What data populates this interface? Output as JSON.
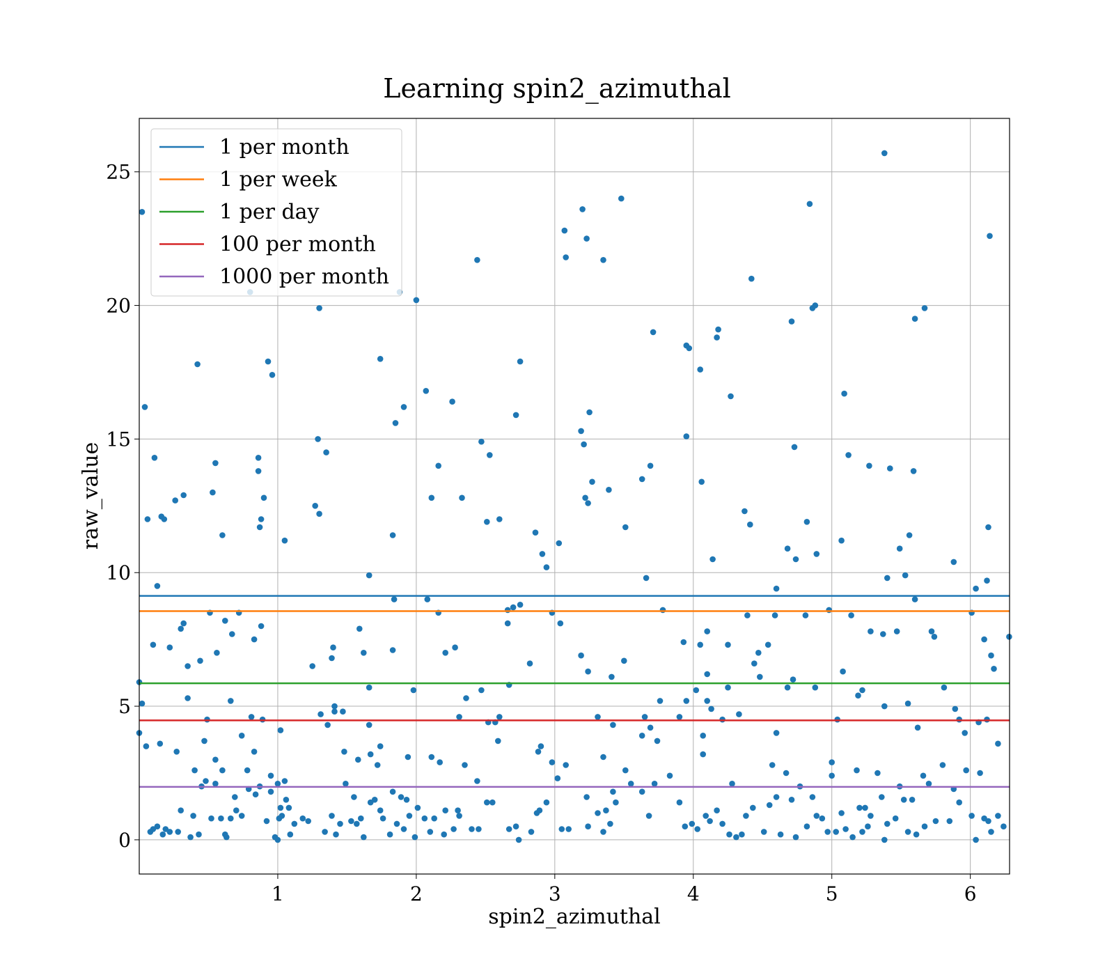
{
  "chart_data": {
    "type": "scatter",
    "title": "Learning spin2_azimuthal",
    "xlabel": "spin2_azimuthal",
    "ylabel": "raw_value",
    "xlim": [
      0.0,
      6.2832
    ],
    "ylim": [
      -1.28,
      27.0
    ],
    "xticks": [
      1,
      2,
      3,
      4,
      5,
      6
    ],
    "yticks": [
      0,
      5,
      10,
      15,
      20,
      25
    ],
    "grid": true,
    "legend_position": "top-left",
    "point_color": "#1f77b4",
    "hlines": [
      {
        "name": "1 per month",
        "y": 9.13,
        "color": "#1f77b4"
      },
      {
        "name": "1 per week",
        "y": 8.56,
        "color": "#ff7f0e"
      },
      {
        "name": "1 per day",
        "y": 5.86,
        "color": "#2ca02c"
      },
      {
        "name": "100 per month",
        "y": 4.47,
        "color": "#d62728"
      },
      {
        "name": "1000 per month",
        "y": 1.98,
        "color": "#9467bd"
      }
    ],
    "points": [
      [
        0.02,
        23.5
      ],
      [
        0.04,
        16.2
      ],
      [
        0.06,
        12.0
      ],
      [
        0.11,
        14.3
      ],
      [
        0.13,
        9.5
      ],
      [
        0.16,
        12.1
      ],
      [
        0.18,
        12.0
      ],
      [
        0.42,
        17.8
      ],
      [
        0.53,
        13.0
      ],
      [
        0.55,
        14.1
      ],
      [
        0.32,
        12.9
      ],
      [
        0.26,
        12.7
      ],
      [
        0.6,
        11.4
      ],
      [
        0.86,
        14.3
      ],
      [
        0.86,
        13.8
      ],
      [
        0.88,
        12.0
      ],
      [
        0.87,
        11.7
      ],
      [
        0.9,
        12.8
      ],
      [
        0.93,
        17.9
      ],
      [
        0.96,
        17.4
      ],
      [
        1.05,
        11.2
      ],
      [
        0.8,
        20.5
      ],
      [
        1.27,
        12.5
      ],
      [
        1.3,
        12.2
      ],
      [
        1.29,
        15.0
      ],
      [
        1.3,
        19.9
      ],
      [
        1.35,
        14.5
      ],
      [
        1.66,
        9.9
      ],
      [
        1.74,
        18.0
      ],
      [
        1.83,
        11.4
      ],
      [
        1.85,
        15.6
      ],
      [
        1.88,
        20.5
      ],
      [
        1.91,
        16.2
      ],
      [
        2.0,
        20.2
      ],
      [
        2.07,
        16.8
      ],
      [
        2.11,
        12.8
      ],
      [
        2.16,
        14.0
      ],
      [
        2.26,
        16.4
      ],
      [
        2.33,
        12.8
      ],
      [
        2.44,
        21.7
      ],
      [
        2.47,
        14.9
      ],
      [
        2.51,
        11.9
      ],
      [
        2.53,
        14.4
      ],
      [
        2.6,
        12.0
      ],
      [
        2.72,
        15.9
      ],
      [
        2.75,
        17.9
      ],
      [
        2.86,
        11.5
      ],
      [
        2.91,
        10.7
      ],
      [
        2.94,
        10.2
      ],
      [
        3.03,
        11.1
      ],
      [
        3.07,
        22.8
      ],
      [
        3.08,
        21.8
      ],
      [
        3.19,
        15.3
      ],
      [
        3.2,
        23.6
      ],
      [
        3.21,
        14.8
      ],
      [
        3.23,
        22.5
      ],
      [
        3.22,
        12.8
      ],
      [
        3.24,
        12.6
      ],
      [
        3.25,
        16.0
      ],
      [
        3.27,
        13.4
      ],
      [
        3.35,
        21.7
      ],
      [
        3.39,
        13.1
      ],
      [
        3.48,
        24.0
      ],
      [
        3.51,
        11.7
      ],
      [
        3.63,
        13.5
      ],
      [
        3.66,
        9.8
      ],
      [
        3.69,
        14.0
      ],
      [
        3.71,
        19.0
      ],
      [
        3.95,
        18.5
      ],
      [
        3.97,
        18.4
      ],
      [
        3.95,
        15.1
      ],
      [
        4.05,
        17.6
      ],
      [
        4.06,
        13.4
      ],
      [
        4.14,
        10.5
      ],
      [
        4.17,
        18.8
      ],
      [
        4.18,
        19.1
      ],
      [
        4.27,
        16.6
      ],
      [
        4.37,
        12.3
      ],
      [
        4.41,
        11.8
      ],
      [
        4.42,
        21.0
      ],
      [
        4.6,
        9.4
      ],
      [
        4.68,
        10.9
      ],
      [
        4.71,
        19.4
      ],
      [
        4.73,
        14.7
      ],
      [
        4.74,
        10.5
      ],
      [
        4.82,
        11.9
      ],
      [
        4.84,
        23.8
      ],
      [
        4.86,
        19.9
      ],
      [
        4.88,
        20.0
      ],
      [
        4.89,
        10.7
      ],
      [
        5.07,
        11.2
      ],
      [
        5.09,
        16.7
      ],
      [
        5.12,
        14.4
      ],
      [
        5.27,
        14.0
      ],
      [
        5.38,
        25.7
      ],
      [
        5.4,
        9.8
      ],
      [
        5.42,
        13.9
      ],
      [
        5.49,
        10.9
      ],
      [
        5.53,
        9.9
      ],
      [
        5.56,
        11.4
      ],
      [
        5.59,
        13.8
      ],
      [
        5.6,
        19.5
      ],
      [
        5.67,
        19.9
      ],
      [
        5.88,
        10.4
      ],
      [
        6.04,
        9.4
      ],
      [
        6.12,
        9.7
      ],
      [
        6.13,
        11.7
      ],
      [
        6.14,
        22.6
      ],
      [
        0.0,
        5.9
      ],
      [
        0.02,
        5.1
      ],
      [
        0.05,
        3.5
      ],
      [
        0.1,
        7.3
      ],
      [
        0.15,
        3.6
      ],
      [
        0.22,
        7.2
      ],
      [
        0.27,
        3.3
      ],
      [
        0.3,
        7.9
      ],
      [
        0.32,
        8.1
      ],
      [
        0.35,
        6.5
      ],
      [
        0.35,
        5.3
      ],
      [
        0.4,
        2.6
      ],
      [
        0.44,
        6.7
      ],
      [
        0.47,
        3.7
      ],
      [
        0.49,
        4.5
      ],
      [
        0.51,
        8.5
      ],
      [
        0.55,
        3.0
      ],
      [
        0.56,
        7.0
      ],
      [
        0.6,
        2.6
      ],
      [
        0.62,
        8.2
      ],
      [
        0.66,
        5.2
      ],
      [
        0.67,
        7.7
      ],
      [
        0.72,
        8.5
      ],
      [
        0.74,
        3.9
      ],
      [
        0.78,
        2.6
      ],
      [
        0.81,
        4.6
      ],
      [
        0.83,
        7.5
      ],
      [
        0.83,
        3.3
      ],
      [
        0.88,
        8.0
      ],
      [
        0.89,
        4.5
      ],
      [
        0.95,
        2.4
      ],
      [
        1.0,
        2.1
      ],
      [
        1.02,
        4.1
      ],
      [
        1.05,
        2.2
      ],
      [
        1.25,
        6.5
      ],
      [
        1.31,
        4.7
      ],
      [
        1.36,
        4.3
      ],
      [
        1.39,
        6.8
      ],
      [
        1.4,
        7.2
      ],
      [
        1.41,
        5.0
      ],
      [
        1.41,
        4.8
      ],
      [
        1.47,
        4.8
      ],
      [
        1.48,
        3.3
      ],
      [
        1.58,
        3.0
      ],
      [
        1.59,
        7.9
      ],
      [
        1.62,
        7.0
      ],
      [
        1.66,
        5.7
      ],
      [
        1.66,
        4.3
      ],
      [
        1.67,
        3.2
      ],
      [
        1.72,
        2.8
      ],
      [
        1.74,
        3.5
      ],
      [
        1.83,
        7.1
      ],
      [
        1.84,
        9.0
      ],
      [
        1.94,
        3.1
      ],
      [
        1.98,
        5.6
      ],
      [
        2.08,
        9.0
      ],
      [
        2.11,
        3.1
      ],
      [
        2.16,
        8.5
      ],
      [
        2.21,
        7.0
      ],
      [
        2.28,
        7.2
      ],
      [
        2.31,
        4.6
      ],
      [
        2.36,
        5.3
      ],
      [
        2.47,
        5.6
      ],
      [
        2.52,
        4.4
      ],
      [
        2.57,
        4.4
      ],
      [
        2.59,
        3.7
      ],
      [
        2.6,
        4.6
      ],
      [
        2.66,
        8.6
      ],
      [
        2.66,
        8.1
      ],
      [
        2.67,
        5.8
      ],
      [
        2.7,
        8.7
      ],
      [
        2.75,
        8.8
      ],
      [
        2.82,
        6.6
      ],
      [
        2.88,
        3.3
      ],
      [
        2.9,
        3.5
      ],
      [
        2.98,
        8.5
      ],
      [
        3.04,
        8.1
      ],
      [
        3.08,
        2.8
      ],
      [
        3.19,
        6.9
      ],
      [
        3.24,
        6.3
      ],
      [
        3.31,
        4.6
      ],
      [
        3.35,
        3.1
      ],
      [
        3.41,
        6.1
      ],
      [
        3.42,
        4.3
      ],
      [
        3.5,
        6.7
      ],
      [
        3.51,
        2.6
      ],
      [
        3.63,
        3.9
      ],
      [
        3.65,
        4.6
      ],
      [
        3.69,
        4.2
      ],
      [
        3.74,
        3.7
      ],
      [
        3.76,
        5.2
      ],
      [
        3.78,
        8.6
      ],
      [
        3.9,
        4.6
      ],
      [
        3.93,
        7.4
      ],
      [
        3.95,
        5.2
      ],
      [
        4.02,
        5.6
      ],
      [
        4.05,
        7.3
      ],
      [
        4.07,
        3.9
      ],
      [
        4.07,
        3.2
      ],
      [
        4.1,
        6.2
      ],
      [
        4.1,
        7.8
      ],
      [
        4.1,
        5.2
      ],
      [
        4.13,
        4.9
      ],
      [
        4.21,
        4.5
      ],
      [
        4.25,
        7.3
      ],
      [
        4.25,
        5.7
      ],
      [
        4.33,
        4.7
      ],
      [
        4.39,
        8.4
      ],
      [
        4.44,
        6.6
      ],
      [
        4.47,
        7.0
      ],
      [
        4.48,
        6.1
      ],
      [
        4.54,
        7.3
      ],
      [
        4.59,
        8.4
      ],
      [
        4.6,
        4.0
      ],
      [
        4.68,
        5.7
      ],
      [
        4.72,
        6.0
      ],
      [
        4.81,
        8.4
      ],
      [
        4.88,
        5.7
      ],
      [
        4.98,
        8.6
      ],
      [
        5.0,
        2.9
      ],
      [
        5.04,
        4.5
      ],
      [
        5.08,
        6.3
      ],
      [
        5.14,
        8.4
      ],
      [
        5.19,
        5.4
      ],
      [
        5.22,
        5.6
      ],
      [
        5.28,
        7.8
      ],
      [
        5.37,
        7.7
      ],
      [
        5.38,
        5.0
      ],
      [
        5.47,
        7.8
      ],
      [
        5.55,
        5.1
      ],
      [
        5.6,
        9.0
      ],
      [
        5.62,
        4.2
      ],
      [
        5.72,
        7.8
      ],
      [
        5.74,
        7.6
      ],
      [
        5.81,
        5.7
      ],
      [
        5.89,
        4.9
      ],
      [
        5.92,
        4.5
      ],
      [
        5.96,
        4.0
      ],
      [
        6.01,
        8.5
      ],
      [
        6.06,
        4.4
      ],
      [
        6.1,
        7.5
      ],
      [
        6.12,
        4.5
      ],
      [
        6.15,
        6.9
      ],
      [
        6.17,
        6.4
      ],
      [
        6.2,
        3.6
      ],
      [
        6.28,
        7.6
      ],
      [
        0.0,
        4.0
      ],
      [
        0.08,
        0.3
      ],
      [
        0.1,
        0.4
      ],
      [
        0.13,
        0.5
      ],
      [
        0.17,
        0.2
      ],
      [
        0.19,
        0.4
      ],
      [
        0.22,
        0.3
      ],
      [
        0.28,
        0.3
      ],
      [
        0.3,
        1.1
      ],
      [
        0.37,
        0.1
      ],
      [
        0.39,
        0.9
      ],
      [
        0.43,
        0.2
      ],
      [
        0.45,
        2.0
      ],
      [
        0.48,
        2.2
      ],
      [
        0.52,
        0.8
      ],
      [
        0.55,
        2.1
      ],
      [
        0.59,
        0.8
      ],
      [
        0.62,
        0.2
      ],
      [
        0.63,
        0.1
      ],
      [
        0.66,
        0.8
      ],
      [
        0.69,
        1.6
      ],
      [
        0.7,
        1.1
      ],
      [
        0.74,
        0.9
      ],
      [
        0.79,
        1.9
      ],
      [
        0.84,
        1.7
      ],
      [
        0.87,
        2.0
      ],
      [
        0.92,
        0.7
      ],
      [
        0.95,
        1.8
      ],
      [
        0.98,
        0.1
      ],
      [
        1.0,
        0.0
      ],
      [
        1.01,
        0.8
      ],
      [
        1.02,
        1.2
      ],
      [
        1.03,
        0.9
      ],
      [
        1.06,
        1.5
      ],
      [
        1.08,
        1.2
      ],
      [
        1.09,
        0.2
      ],
      [
        1.12,
        0.6
      ],
      [
        1.18,
        0.8
      ],
      [
        1.22,
        0.7
      ],
      [
        1.34,
        0.3
      ],
      [
        1.39,
        0.9
      ],
      [
        1.42,
        0.2
      ],
      [
        1.45,
        0.6
      ],
      [
        1.49,
        2.1
      ],
      [
        1.53,
        0.7
      ],
      [
        1.55,
        1.6
      ],
      [
        1.57,
        0.6
      ],
      [
        1.6,
        0.8
      ],
      [
        1.62,
        0.1
      ],
      [
        1.67,
        1.4
      ],
      [
        1.7,
        1.5
      ],
      [
        1.74,
        1.1
      ],
      [
        1.76,
        0.8
      ],
      [
        1.81,
        0.2
      ],
      [
        1.83,
        1.8
      ],
      [
        1.86,
        0.6
      ],
      [
        1.89,
        1.6
      ],
      [
        1.91,
        0.4
      ],
      [
        1.93,
        1.5
      ],
      [
        1.95,
        0.9
      ],
      [
        1.99,
        0.1
      ],
      [
        2.01,
        1.2
      ],
      [
        2.06,
        0.8
      ],
      [
        2.1,
        0.3
      ],
      [
        2.13,
        0.8
      ],
      [
        2.17,
        2.9
      ],
      [
        2.2,
        0.2
      ],
      [
        2.21,
        1.1
      ],
      [
        2.27,
        0.4
      ],
      [
        2.3,
        1.1
      ],
      [
        2.31,
        0.9
      ],
      [
        2.35,
        2.8
      ],
      [
        2.4,
        0.4
      ],
      [
        2.44,
        2.2
      ],
      [
        2.45,
        0.4
      ],
      [
        2.51,
        1.4
      ],
      [
        2.55,
        1.4
      ],
      [
        2.67,
        0.4
      ],
      [
        2.72,
        0.5
      ],
      [
        2.74,
        0.0
      ],
      [
        2.83,
        0.3
      ],
      [
        2.87,
        1.0
      ],
      [
        2.89,
        1.1
      ],
      [
        2.94,
        1.4
      ],
      [
        2.98,
        2.9
      ],
      [
        3.02,
        2.3
      ],
      [
        3.05,
        0.4
      ],
      [
        3.1,
        0.4
      ],
      [
        3.23,
        1.6
      ],
      [
        3.24,
        0.5
      ],
      [
        3.31,
        1.0
      ],
      [
        3.35,
        0.3
      ],
      [
        3.37,
        1.1
      ],
      [
        3.4,
        0.6
      ],
      [
        3.42,
        1.8
      ],
      [
        3.44,
        1.4
      ],
      [
        3.55,
        2.1
      ],
      [
        3.63,
        1.8
      ],
      [
        3.68,
        0.9
      ],
      [
        3.72,
        2.1
      ],
      [
        3.83,
        2.4
      ],
      [
        3.9,
        1.4
      ],
      [
        3.94,
        0.5
      ],
      [
        3.99,
        0.6
      ],
      [
        4.03,
        0.4
      ],
      [
        4.09,
        0.9
      ],
      [
        4.12,
        0.7
      ],
      [
        4.17,
        1.1
      ],
      [
        4.21,
        0.6
      ],
      [
        4.26,
        0.2
      ],
      [
        4.28,
        2.1
      ],
      [
        4.31,
        0.1
      ],
      [
        4.35,
        0.2
      ],
      [
        4.38,
        0.9
      ],
      [
        4.43,
        1.2
      ],
      [
        4.51,
        0.3
      ],
      [
        4.55,
        1.3
      ],
      [
        4.57,
        2.8
      ],
      [
        4.6,
        1.6
      ],
      [
        4.63,
        0.2
      ],
      [
        4.67,
        2.5
      ],
      [
        4.71,
        1.5
      ],
      [
        4.74,
        0.1
      ],
      [
        4.77,
        2.0
      ],
      [
        4.82,
        0.5
      ],
      [
        4.86,
        1.6
      ],
      [
        4.89,
        0.9
      ],
      [
        4.93,
        0.8
      ],
      [
        4.97,
        0.3
      ],
      [
        5.0,
        2.4
      ],
      [
        5.03,
        0.3
      ],
      [
        5.07,
        1.0
      ],
      [
        5.1,
        0.4
      ],
      [
        5.15,
        0.1
      ],
      [
        5.18,
        2.6
      ],
      [
        5.2,
        1.2
      ],
      [
        5.22,
        0.3
      ],
      [
        5.24,
        1.2
      ],
      [
        5.26,
        0.5
      ],
      [
        5.28,
        0.9
      ],
      [
        5.33,
        2.5
      ],
      [
        5.36,
        1.6
      ],
      [
        5.38,
        0.0
      ],
      [
        5.4,
        0.6
      ],
      [
        5.46,
        0.8
      ],
      [
        5.49,
        2.0
      ],
      [
        5.52,
        1.5
      ],
      [
        5.55,
        0.3
      ],
      [
        5.58,
        1.5
      ],
      [
        5.61,
        0.2
      ],
      [
        5.66,
        2.4
      ],
      [
        5.67,
        0.5
      ],
      [
        5.7,
        2.1
      ],
      [
        5.75,
        0.7
      ],
      [
        5.8,
        2.8
      ],
      [
        5.85,
        0.7
      ],
      [
        5.88,
        1.9
      ],
      [
        5.92,
        1.4
      ],
      [
        5.97,
        2.6
      ],
      [
        6.01,
        0.9
      ],
      [
        6.04,
        0.0
      ],
      [
        6.07,
        2.5
      ],
      [
        6.1,
        0.8
      ],
      [
        6.13,
        0.7
      ],
      [
        6.15,
        0.3
      ],
      [
        6.2,
        0.9
      ],
      [
        6.24,
        0.5
      ]
    ]
  }
}
